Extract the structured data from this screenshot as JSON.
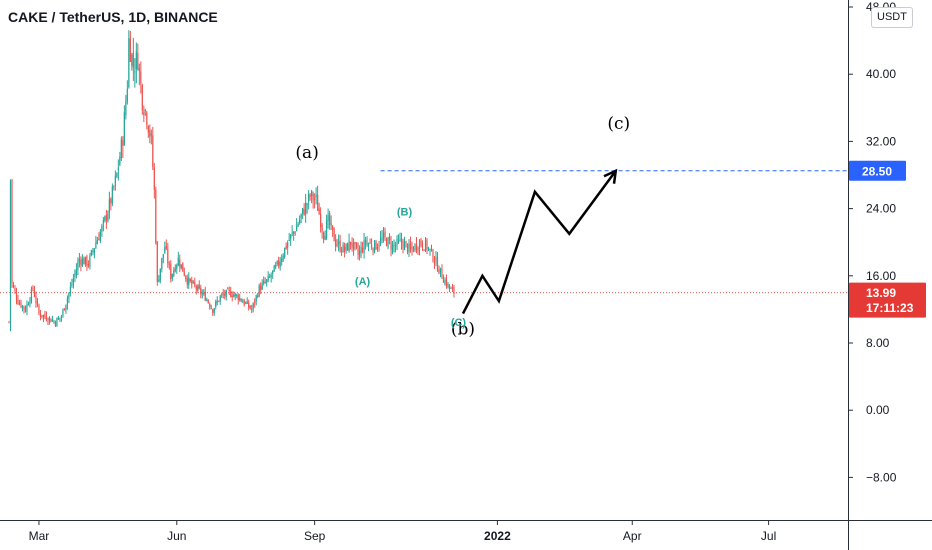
{
  "header": {
    "title": "CAKE / TetherUS, 1D, BINANCE"
  },
  "price_axis": {
    "unit": "USDT"
  },
  "colors": {
    "up": "#26a69a",
    "down": "#ef5350",
    "target": "#2962ff",
    "current": "#e53935",
    "wave_small": "#26a69a",
    "projection": "#000000"
  },
  "chart_data": {
    "type": "candlestick",
    "title": "CAKE / TetherUS, 1D, BINANCE",
    "y_ticks": [
      "48.00",
      "40.00",
      "32.00",
      "24.00",
      "16.00",
      "8.00",
      "0.00",
      "−8.00"
    ],
    "ylim": [
      -12,
      50
    ],
    "x_ticks": [
      {
        "label": "Mar",
        "date": "2021-03-01"
      },
      {
        "label": "Jun",
        "date": "2021-06-01"
      },
      {
        "label": "Sep",
        "date": "2021-09-01"
      },
      {
        "label": "2022",
        "date": "2022-01-01"
      },
      {
        "label": "Apr",
        "date": "2022-04-01"
      },
      {
        "label": "Jul",
        "date": "2022-07-01"
      }
    ],
    "xlim": [
      "2021-02-03",
      "2022-08-23"
    ],
    "current_price": {
      "value": 13.99,
      "label": "13.99",
      "countdown": "17:11:23"
    },
    "target_level": {
      "value": 28.5,
      "label": "28.50",
      "from": "2021-10-15"
    },
    "price_path": [
      {
        "date": "2021-02-09",
        "price": 10.5
      },
      {
        "date": "2021-02-10",
        "price": 27.5
      },
      {
        "date": "2021-02-11",
        "price": 15.0
      },
      {
        "date": "2021-02-15",
        "price": 13.0
      },
      {
        "date": "2021-02-20",
        "price": 12.0
      },
      {
        "date": "2021-02-25",
        "price": 14.5
      },
      {
        "date": "2021-03-01",
        "price": 11.5
      },
      {
        "date": "2021-03-07",
        "price": 11.0
      },
      {
        "date": "2021-03-12",
        "price": 10.5
      },
      {
        "date": "2021-03-16",
        "price": 11.2
      },
      {
        "date": "2021-03-22",
        "price": 14.5
      },
      {
        "date": "2021-03-28",
        "price": 18.0
      },
      {
        "date": "2021-04-03",
        "price": 17.5
      },
      {
        "date": "2021-04-08",
        "price": 20.0
      },
      {
        "date": "2021-04-13",
        "price": 22.0
      },
      {
        "date": "2021-04-18",
        "price": 25.0
      },
      {
        "date": "2021-04-22",
        "price": 28.0
      },
      {
        "date": "2021-04-26",
        "price": 32.5
      },
      {
        "date": "2021-04-29",
        "price": 39.0
      },
      {
        "date": "2021-04-30",
        "price": 44.0
      },
      {
        "date": "2021-05-03",
        "price": 41.0
      },
      {
        "date": "2021-05-06",
        "price": 42.0
      },
      {
        "date": "2021-05-09",
        "price": 37.0
      },
      {
        "date": "2021-05-12",
        "price": 35.0
      },
      {
        "date": "2021-05-15",
        "price": 32.0
      },
      {
        "date": "2021-05-17",
        "price": 26.0
      },
      {
        "date": "2021-05-19",
        "price": 15.0
      },
      {
        "date": "2021-05-21",
        "price": 17.0
      },
      {
        "date": "2021-05-24",
        "price": 19.5
      },
      {
        "date": "2021-05-28",
        "price": 16.0
      },
      {
        "date": "2021-06-02",
        "price": 18.0
      },
      {
        "date": "2021-06-08",
        "price": 15.5
      },
      {
        "date": "2021-06-14",
        "price": 14.5
      },
      {
        "date": "2021-06-20",
        "price": 13.5
      },
      {
        "date": "2021-06-25",
        "price": 12.0
      },
      {
        "date": "2021-06-30",
        "price": 13.5
      },
      {
        "date": "2021-07-06",
        "price": 14.0
      },
      {
        "date": "2021-07-12",
        "price": 13.5
      },
      {
        "date": "2021-07-18",
        "price": 12.5
      },
      {
        "date": "2021-07-21",
        "price": 12.0
      },
      {
        "date": "2021-07-26",
        "price": 14.5
      },
      {
        "date": "2021-08-01",
        "price": 15.5
      },
      {
        "date": "2021-08-08",
        "price": 17.5
      },
      {
        "date": "2021-08-14",
        "price": 20.0
      },
      {
        "date": "2021-08-19",
        "price": 21.5
      },
      {
        "date": "2021-08-24",
        "price": 23.5
      },
      {
        "date": "2021-08-29",
        "price": 25.5
      },
      {
        "date": "2021-09-02",
        "price": 25.0
      },
      {
        "date": "2021-09-07",
        "price": 21.0
      },
      {
        "date": "2021-09-10",
        "price": 22.5
      },
      {
        "date": "2021-09-15",
        "price": 20.0
      },
      {
        "date": "2021-09-21",
        "price": 19.0
      },
      {
        "date": "2021-09-25",
        "price": 20.0
      },
      {
        "date": "2021-09-30",
        "price": 18.5
      },
      {
        "date": "2021-10-05",
        "price": 20.0
      },
      {
        "date": "2021-10-11",
        "price": 19.5
      },
      {
        "date": "2021-10-17",
        "price": 20.5
      },
      {
        "date": "2021-10-23",
        "price": 19.5
      },
      {
        "date": "2021-10-29",
        "price": 20.0
      },
      {
        "date": "2021-11-04",
        "price": 19.0
      },
      {
        "date": "2021-11-10",
        "price": 20.0
      },
      {
        "date": "2021-11-15",
        "price": 19.5
      },
      {
        "date": "2021-11-20",
        "price": 18.0
      },
      {
        "date": "2021-11-25",
        "price": 16.0
      },
      {
        "date": "2021-11-30",
        "price": 14.5
      },
      {
        "date": "2021-12-03",
        "price": 13.99
      }
    ],
    "projection": [
      {
        "date": "2021-12-09",
        "price": 11.5
      },
      {
        "date": "2021-12-22",
        "price": 16.0
      },
      {
        "date": "2022-01-02",
        "price": 13.0
      },
      {
        "date": "2022-01-26",
        "price": 26.0
      },
      {
        "date": "2022-02-18",
        "price": 21.0
      },
      {
        "date": "2022-03-21",
        "price": 28.5
      }
    ],
    "annotations": [
      {
        "text": "(a)",
        "date": "2021-08-27",
        "price": 30.0,
        "style": "big"
      },
      {
        "text": "(b)",
        "date": "2021-12-09",
        "price": 9.0,
        "style": "big"
      },
      {
        "text": "(c)",
        "date": "2022-03-23",
        "price": 33.5,
        "style": "big"
      },
      {
        "text": "(A)",
        "date": "2021-10-03",
        "price": 14.9,
        "style": "small"
      },
      {
        "text": "(B)",
        "date": "2021-10-31",
        "price": 23.2,
        "style": "small"
      },
      {
        "text": "(C)",
        "date": "2021-12-06",
        "price": 10.0,
        "style": "small"
      }
    ]
  }
}
